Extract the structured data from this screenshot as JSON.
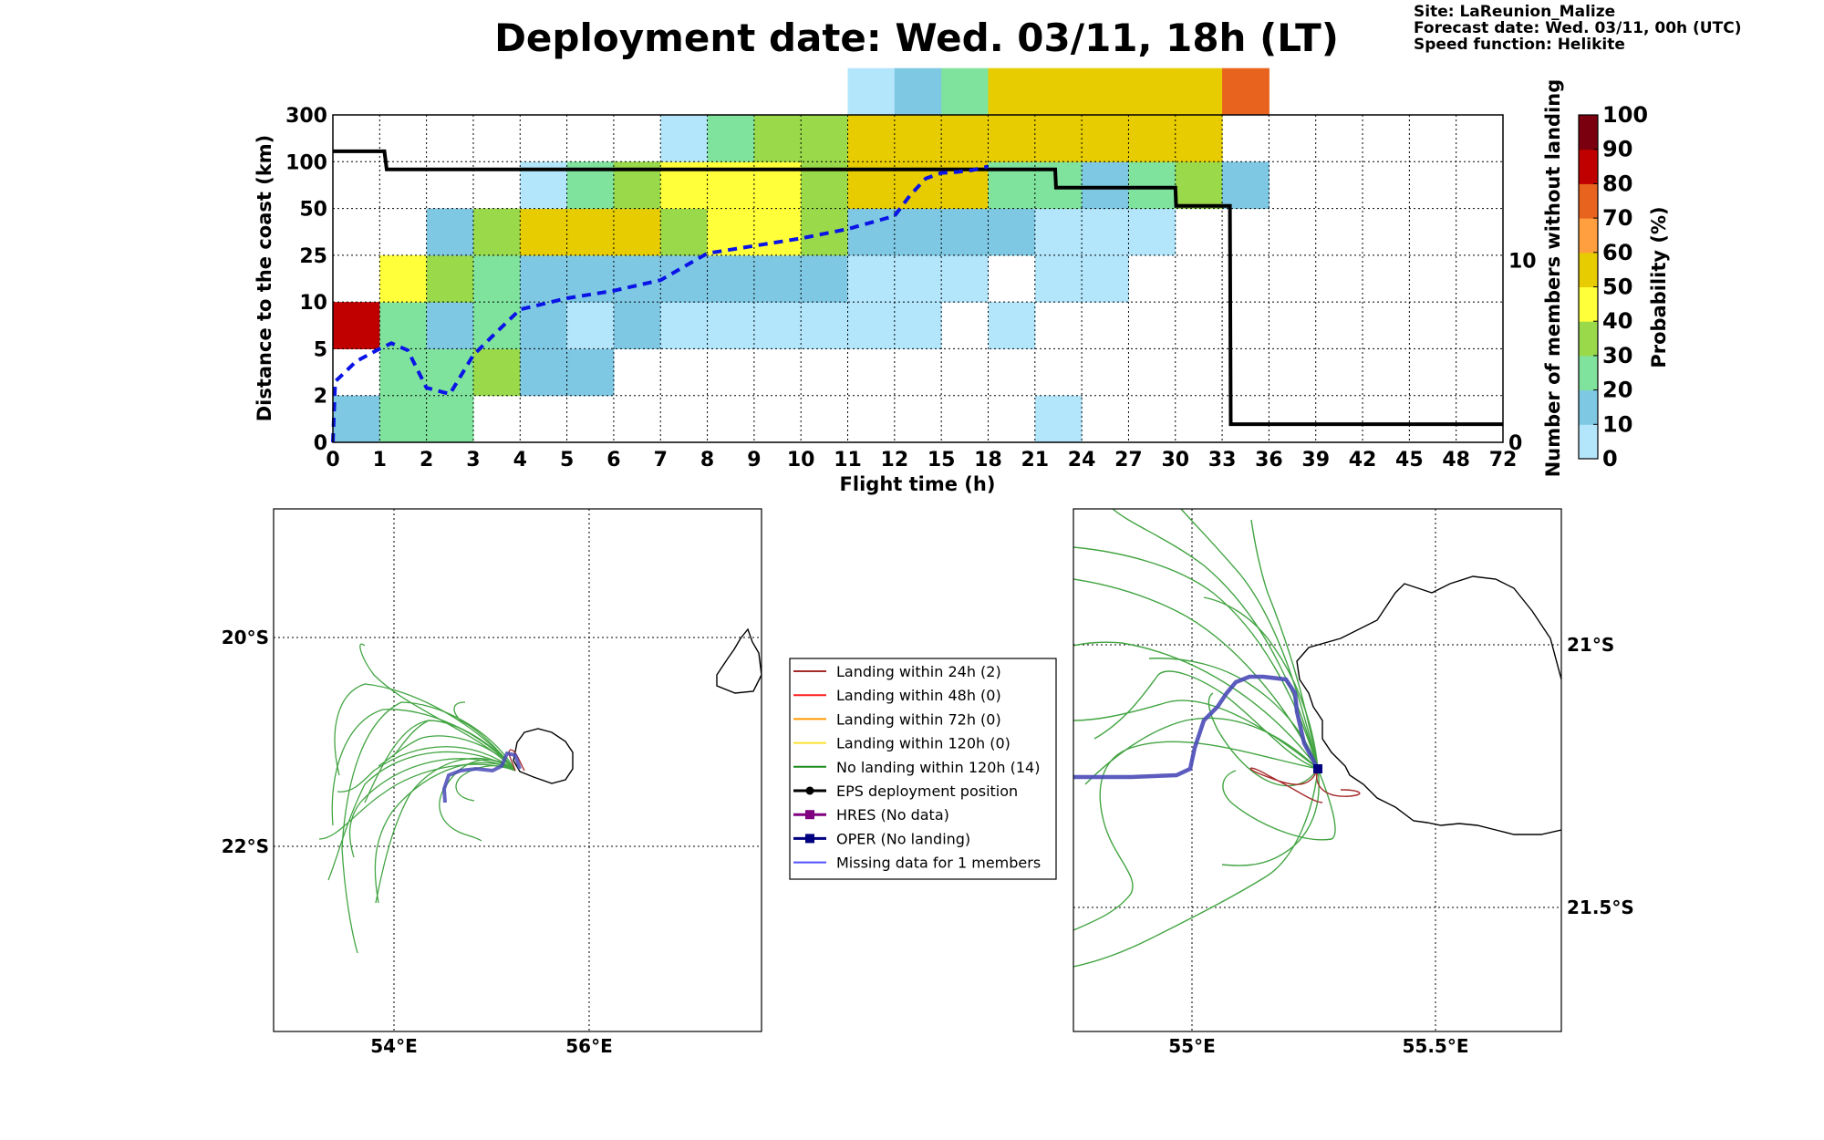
{
  "header": {
    "title": "Deployment date: Wed. 03/11, 18h (LT)",
    "site": "Site: LaReunion_Malize",
    "forecast": "Forecast date: Wed. 03/11, 00h (UTC)",
    "speed": "Speed function: Helikite"
  },
  "chart_data": [
    {
      "type": "heatmap",
      "xlabel": "Flight time (h)",
      "ylabel": "Distance to the coast (km)",
      "y2label": "Number of members without landing",
      "colorbar_label": "Probability (%)",
      "x_ticks": [
        "0",
        "1",
        "2",
        "3",
        "4",
        "5",
        "6",
        "7",
        "8",
        "9",
        "10",
        "11",
        "12",
        "15",
        "18",
        "21",
        "24",
        "27",
        "30",
        "33",
        "36",
        "39",
        "42",
        "45",
        "48",
        "72"
      ],
      "y_ticks": [
        "0",
        "2",
        "5",
        "10",
        "25",
        "50",
        "100",
        "300"
      ],
      "y2_ticks": [
        "0",
        "10"
      ],
      "colorbar": {
        "ticks": [
          "0",
          "10",
          "20",
          "30",
          "40",
          "50",
          "60",
          "70",
          "80",
          "90",
          "100"
        ],
        "colors": [
          "#b3e5fb",
          "#7ec8e3",
          "#7fe39d",
          "#99d94a",
          "#ffff3a",
          "#e6cc00",
          "#ff9f3f",
          "#e8641e",
          "#c00000",
          "#7a0010"
        ]
      },
      "grid": true,
      "cells": [
        {
          "x": 0,
          "y": 0,
          "p": 10
        },
        {
          "x": 0,
          "y": 2,
          "p": 80
        },
        {
          "x": 1,
          "y": 0,
          "p": 20
        },
        {
          "x": 1,
          "y": 1,
          "p": 20
        },
        {
          "x": 1,
          "y": 2,
          "p": 20
        },
        {
          "x": 1,
          "y": 3,
          "p": 40
        },
        {
          "x": 2,
          "y": 0,
          "p": 20
        },
        {
          "x": 2,
          "y": 1,
          "p": 20
        },
        {
          "x": 2,
          "y": 2,
          "p": 10
        },
        {
          "x": 2,
          "y": 3,
          "p": 30
        },
        {
          "x": 2,
          "y": 4,
          "p": 10
        },
        {
          "x": 3,
          "y": 1,
          "p": 30
        },
        {
          "x": 3,
          "y": 2,
          "p": 20
        },
        {
          "x": 3,
          "y": 3,
          "p": 20
        },
        {
          "x": 3,
          "y": 4,
          "p": 30
        },
        {
          "x": 4,
          "y": 1,
          "p": 10
        },
        {
          "x": 4,
          "y": 2,
          "p": 10
        },
        {
          "x": 4,
          "y": 3,
          "p": 10
        },
        {
          "x": 4,
          "y": 4,
          "p": 50
        },
        {
          "x": 4,
          "y": 5,
          "p": 0
        },
        {
          "x": 5,
          "y": 1,
          "p": 10
        },
        {
          "x": 5,
          "y": 2,
          "p": 0
        },
        {
          "x": 5,
          "y": 3,
          "p": 10
        },
        {
          "x": 5,
          "y": 4,
          "p": 50
        },
        {
          "x": 5,
          "y": 5,
          "p": 20
        },
        {
          "x": 6,
          "y": 2,
          "p": 10
        },
        {
          "x": 6,
          "y": 3,
          "p": 10
        },
        {
          "x": 6,
          "y": 4,
          "p": 50
        },
        {
          "x": 6,
          "y": 5,
          "p": 30
        },
        {
          "x": 7,
          "y": 2,
          "p": 0
        },
        {
          "x": 7,
          "y": 3,
          "p": 10
        },
        {
          "x": 7,
          "y": 4,
          "p": 30
        },
        {
          "x": 7,
          "y": 5,
          "p": 40
        },
        {
          "x": 7,
          "y": 6,
          "p": 0
        },
        {
          "x": 8,
          "y": 2,
          "p": 0
        },
        {
          "x": 8,
          "y": 3,
          "p": 10
        },
        {
          "x": 8,
          "y": 4,
          "p": 40
        },
        {
          "x": 8,
          "y": 5,
          "p": 40
        },
        {
          "x": 8,
          "y": 6,
          "p": 20
        },
        {
          "x": 9,
          "y": 2,
          "p": 0
        },
        {
          "x": 9,
          "y": 3,
          "p": 10
        },
        {
          "x": 9,
          "y": 4,
          "p": 40
        },
        {
          "x": 9,
          "y": 5,
          "p": 40
        },
        {
          "x": 9,
          "y": 6,
          "p": 30
        },
        {
          "x": 10,
          "y": 2,
          "p": 0
        },
        {
          "x": 10,
          "y": 3,
          "p": 10
        },
        {
          "x": 10,
          "y": 4,
          "p": 30
        },
        {
          "x": 10,
          "y": 5,
          "p": 30
        },
        {
          "x": 10,
          "y": 6,
          "p": 30
        },
        {
          "x": 11,
          "y": 2,
          "p": 0
        },
        {
          "x": 11,
          "y": 3,
          "p": 0
        },
        {
          "x": 11,
          "y": 4,
          "p": 10
        },
        {
          "x": 11,
          "y": 5,
          "p": 50
        },
        {
          "x": 11,
          "y": 6,
          "p": 50
        },
        {
          "x": 11,
          "y": 7,
          "p": 0
        },
        {
          "x": 12,
          "y": 2,
          "p": 0
        },
        {
          "x": 12,
          "y": 3,
          "p": 0
        },
        {
          "x": 12,
          "y": 4,
          "p": 10
        },
        {
          "x": 12,
          "y": 5,
          "p": 50
        },
        {
          "x": 12,
          "y": 6,
          "p": 50
        },
        {
          "x": 12,
          "y": 7,
          "p": 10
        },
        {
          "x": 13,
          "y": 3,
          "p": 0
        },
        {
          "x": 13,
          "y": 4,
          "p": 10
        },
        {
          "x": 13,
          "y": 5,
          "p": 50
        },
        {
          "x": 13,
          "y": 6,
          "p": 50
        },
        {
          "x": 13,
          "y": 7,
          "p": 20
        },
        {
          "x": 14,
          "y": 2,
          "p": 0
        },
        {
          "x": 14,
          "y": 4,
          "p": 10
        },
        {
          "x": 14,
          "y": 5,
          "p": 20
        },
        {
          "x": 14,
          "y": 6,
          "p": 50
        },
        {
          "x": 14,
          "y": 7,
          "p": 50
        },
        {
          "x": 15,
          "y": 0,
          "p": 0
        },
        {
          "x": 15,
          "y": 3,
          "p": 0
        },
        {
          "x": 15,
          "y": 4,
          "p": 0
        },
        {
          "x": 15,
          "y": 5,
          "p": 20
        },
        {
          "x": 15,
          "y": 6,
          "p": 50
        },
        {
          "x": 15,
          "y": 7,
          "p": 50
        },
        {
          "x": 16,
          "y": 3,
          "p": 0
        },
        {
          "x": 16,
          "y": 4,
          "p": 0
        },
        {
          "x": 16,
          "y": 5,
          "p": 10
        },
        {
          "x": 16,
          "y": 6,
          "p": 50
        },
        {
          "x": 16,
          "y": 7,
          "p": 50
        },
        {
          "x": 17,
          "y": 4,
          "p": 0
        },
        {
          "x": 17,
          "y": 5,
          "p": 20
        },
        {
          "x": 17,
          "y": 6,
          "p": 50
        },
        {
          "x": 17,
          "y": 7,
          "p": 50
        },
        {
          "x": 18,
          "y": 5,
          "p": 30
        },
        {
          "x": 18,
          "y": 6,
          "p": 50
        },
        {
          "x": 18,
          "y": 7,
          "p": 50
        },
        {
          "x": 19,
          "y": 5,
          "p": 10
        },
        {
          "x": 19,
          "y": 7,
          "p": 70
        }
      ],
      "median_distance_km": [
        [
          0,
          0
        ],
        [
          0.05,
          2.9
        ],
        [
          0.5,
          4.2
        ],
        [
          1,
          5
        ],
        [
          1.25,
          5.6
        ],
        [
          1.6,
          4.9
        ],
        [
          2,
          2.5
        ],
        [
          2.5,
          2.1
        ],
        [
          3,
          4.6
        ],
        [
          3.5,
          6.8
        ],
        [
          4,
          9.2
        ],
        [
          5,
          11.2
        ],
        [
          6,
          13.6
        ],
        [
          7,
          17
        ],
        [
          8,
          26
        ],
        [
          9,
          30
        ],
        [
          10,
          34
        ],
        [
          11,
          39
        ],
        [
          12,
          46
        ],
        [
          13,
          64
        ],
        [
          14,
          82
        ],
        [
          15,
          88
        ],
        [
          16,
          89
        ],
        [
          17,
          91
        ],
        [
          18,
          95
        ]
      ],
      "members_without_landing": [
        [
          0,
          16
        ],
        [
          1.1,
          16
        ],
        [
          1.15,
          15
        ],
        [
          22.3,
          15
        ],
        [
          22.35,
          14
        ],
        [
          30,
          14
        ],
        [
          30.05,
          13
        ],
        [
          33.5,
          13
        ],
        [
          33.55,
          1
        ],
        [
          72,
          1
        ]
      ],
      "members_axis_max": 18
    },
    {
      "type": "map",
      "lon_ticks": [
        "54°E",
        "56°E"
      ],
      "lat_ticks": [
        "20°S",
        "22°S"
      ]
    },
    {
      "type": "map",
      "lon_ticks": [
        "55°E",
        "55.5°E"
      ],
      "lat_ticks": [
        "21°S",
        "21.5°S"
      ]
    }
  ],
  "legend": [
    {
      "label": "Landing within 24h (2)",
      "color": "#a52a2a",
      "marker": "none"
    },
    {
      "label": "Landing within 48h (0)",
      "color": "#ff2020",
      "marker": "none"
    },
    {
      "label": "Landing within 72h (0)",
      "color": "#ff9900",
      "marker": "none"
    },
    {
      "label": "Landing within 120h (0)",
      "color": "#ffe033",
      "marker": "none"
    },
    {
      "label": "No landing within 120h (14)",
      "color": "#1a8a1a",
      "marker": "none"
    },
    {
      "label": "EPS deployment position",
      "color": "#000000",
      "marker": "circle"
    },
    {
      "label": "HRES (No data)",
      "color": "#800080",
      "marker": "square"
    },
    {
      "label": "OPER (No landing)",
      "color": "#000080",
      "marker": "square"
    },
    {
      "label": "Missing data for 1 members",
      "color": "#4f4fff",
      "marker": "none"
    }
  ]
}
